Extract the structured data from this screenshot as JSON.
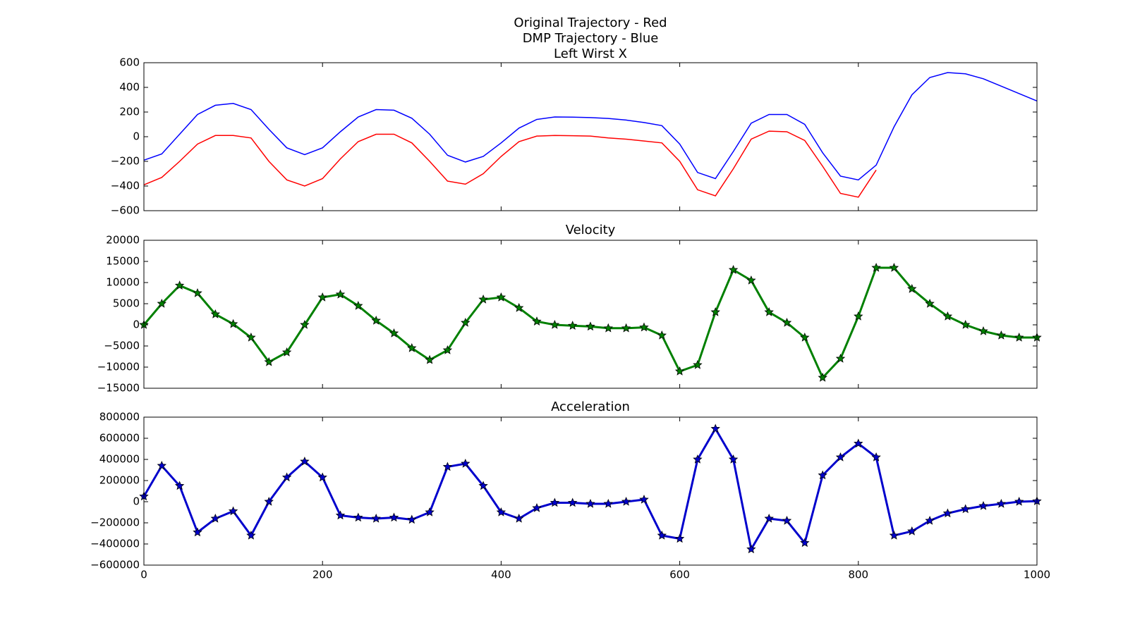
{
  "chart_data": [
    {
      "type": "line",
      "title": [
        "Original Trajectory - Red",
        "DMP Trajectory - Blue",
        "Left Wirst X"
      ],
      "x": [
        0,
        20,
        40,
        60,
        80,
        100,
        120,
        140,
        160,
        180,
        200,
        220,
        240,
        260,
        280,
        300,
        320,
        340,
        360,
        380,
        400,
        420,
        440,
        460,
        480,
        500,
        520,
        540,
        560,
        580,
        600,
        620,
        640,
        660,
        680,
        700,
        720,
        740,
        760,
        780,
        800,
        820,
        840,
        860,
        880,
        900,
        920,
        940,
        960,
        980,
        1000
      ],
      "series": [
        {
          "color": "#ff0000",
          "values": [
            -390,
            -330,
            -200,
            -60,
            10,
            10,
            -10,
            -200,
            -350,
            -400,
            -340,
            -180,
            -40,
            20,
            20,
            -50,
            -200,
            -360,
            -385,
            -300,
            -160,
            -40,
            5,
            10,
            8,
            5,
            -10,
            -20,
            -35,
            -50,
            -200,
            -430,
            -480,
            -260,
            -20,
            45,
            40,
            -30,
            -240,
            -460,
            -490,
            -270,
            null,
            null,
            null,
            null,
            null,
            null,
            null,
            null,
            null
          ]
        },
        {
          "color": "#0000ff",
          "values": [
            -190,
            -140,
            20,
            180,
            255,
            270,
            220,
            60,
            -90,
            -145,
            -90,
            40,
            160,
            220,
            215,
            150,
            20,
            -150,
            -205,
            -160,
            -50,
            70,
            140,
            160,
            158,
            155,
            148,
            135,
            115,
            90,
            -60,
            -290,
            -340,
            -120,
            110,
            180,
            180,
            100,
            -130,
            -320,
            -350,
            -230,
            80,
            340,
            480,
            520,
            510,
            470,
            410,
            350,
            290
          ]
        }
      ],
      "xlim": [
        0,
        1000
      ],
      "xticks": [
        0,
        200,
        400,
        600,
        800,
        1000
      ],
      "ylim": [
        -600,
        600
      ],
      "yticks": [
        {
          "value": -600,
          "label": "−600"
        },
        {
          "value": -400,
          "label": "−400"
        },
        {
          "value": -200,
          "label": "−200"
        },
        0,
        200,
        400,
        600
      ]
    },
    {
      "type": "line",
      "title": "Velocity",
      "marker": "star",
      "x": [
        0,
        20,
        40,
        60,
        80,
        100,
        120,
        140,
        160,
        180,
        200,
        220,
        240,
        260,
        280,
        300,
        320,
        340,
        360,
        380,
        400,
        420,
        440,
        460,
        480,
        500,
        520,
        540,
        560,
        580,
        600,
        620,
        640,
        660,
        680,
        700,
        720,
        740,
        760,
        780,
        800,
        820,
        840,
        860,
        880,
        900,
        920,
        940,
        960,
        980,
        1000
      ],
      "series": [
        {
          "color": "#008000",
          "values": [
            0,
            5000,
            9300,
            7500,
            2500,
            200,
            -3000,
            -8800,
            -6500,
            0,
            6500,
            7200,
            4500,
            1000,
            -2000,
            -5500,
            -8300,
            -6000,
            500,
            6000,
            6500,
            4000,
            800,
            0,
            -200,
            -400,
            -800,
            -800,
            -600,
            -2500,
            -11000,
            -9500,
            3000,
            13000,
            10500,
            3000,
            500,
            -3000,
            -12500,
            -8000,
            2000,
            13500,
            13500,
            8500,
            5000,
            2000,
            0,
            -1500,
            -2500,
            -3000,
            -3000
          ]
        }
      ],
      "xlim": [
        0,
        1000
      ],
      "xticks": [
        0,
        200,
        400,
        600,
        800,
        1000
      ],
      "ylim": [
        -15000,
        20000
      ],
      "yticks": [
        {
          "value": -15000,
          "label": "−15000"
        },
        {
          "value": -10000,
          "label": "−10000"
        },
        {
          "value": -5000,
          "label": "−5000"
        },
        0,
        5000,
        10000,
        15000,
        20000
      ]
    },
    {
      "type": "line",
      "title": "Acceleration",
      "marker": "star",
      "x": [
        0,
        20,
        40,
        60,
        80,
        100,
        120,
        140,
        160,
        180,
        200,
        220,
        240,
        260,
        280,
        300,
        320,
        340,
        360,
        380,
        400,
        420,
        440,
        460,
        480,
        500,
        520,
        540,
        560,
        580,
        600,
        620,
        640,
        660,
        680,
        700,
        720,
        740,
        760,
        780,
        800,
        820,
        840,
        860,
        880,
        900,
        920,
        940,
        960,
        980,
        1000
      ],
      "series": [
        {
          "color": "#0000cc",
          "values": [
            50000,
            340000,
            150000,
            -290000,
            -160000,
            -90000,
            -320000,
            0,
            230000,
            380000,
            230000,
            -130000,
            -150000,
            -160000,
            -150000,
            -170000,
            -100000,
            330000,
            360000,
            150000,
            -100000,
            -160000,
            -60000,
            -10000,
            -10000,
            -20000,
            -20000,
            0,
            20000,
            -320000,
            -350000,
            400000,
            690000,
            400000,
            -450000,
            -160000,
            -180000,
            -390000,
            250000,
            420000,
            550000,
            420000,
            -320000,
            -280000,
            -180000,
            -110000,
            -70000,
            -40000,
            -20000,
            0,
            5000
          ]
        }
      ],
      "xlim": [
        0,
        1000
      ],
      "xticks": [
        0,
        200,
        400,
        600,
        800,
        1000
      ],
      "ylim": [
        -600000,
        800000
      ],
      "yticks": [
        {
          "value": -600000,
          "label": "−600000"
        },
        {
          "value": -400000,
          "label": "−400000"
        },
        {
          "value": -200000,
          "label": "−200000"
        },
        0,
        200000,
        400000,
        600000,
        800000
      ]
    }
  ]
}
